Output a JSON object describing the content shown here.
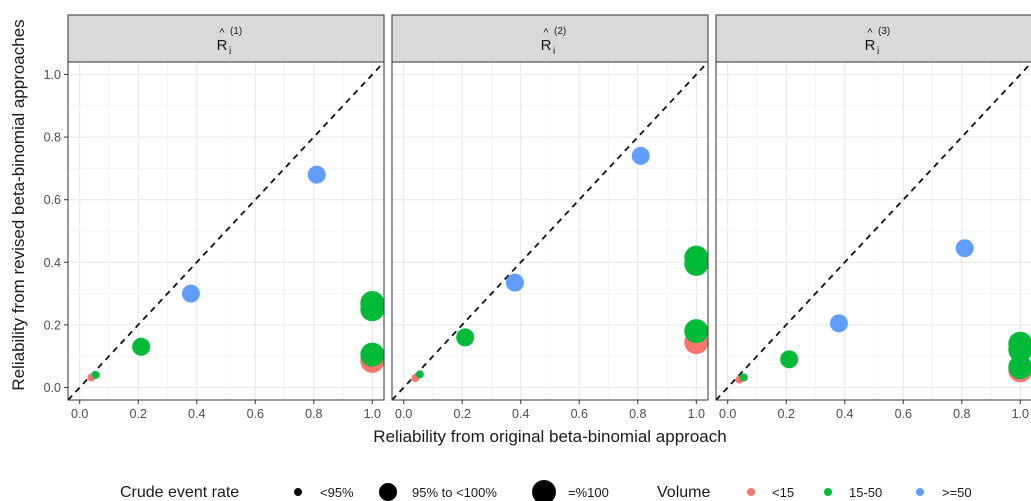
{
  "chart_data": {
    "type": "scatter",
    "xlabel": "Reliability from original beta-binomial approach",
    "ylabel": "Reliability from revised beta-binomial approaches",
    "xlim": [
      -0.04,
      1.04
    ],
    "ylim": [
      -0.04,
      1.04
    ],
    "x_ticks": [
      "0.0",
      "0.2",
      "0.4",
      "0.6",
      "0.8",
      "1.0"
    ],
    "y_ticks": [
      "0.0",
      "0.2",
      "0.4",
      "0.6",
      "0.8",
      "1.0"
    ],
    "grid": true,
    "reference_line": "y = x (dashed)",
    "legend_position": "bottom",
    "size_legend": {
      "title": "Crude event rate",
      "entries": [
        "<95%",
        "95% to <100%",
        "=%100"
      ]
    },
    "color_legend": {
      "title": "Volume",
      "entries": [
        {
          "label": "<15",
          "color": "#F8766D"
        },
        {
          "label": "15-50",
          "color": "#00BA38"
        },
        {
          "label": ">=50",
          "color": "#619CFF"
        }
      ]
    },
    "panels": [
      {
        "strip_label_base": "R",
        "strip_label_sup": "(1)",
        "strip_label_sub": "i",
        "points": [
          {
            "x": 0.04,
            "y": 0.032,
            "volume": "<15",
            "rate": "<95%"
          },
          {
            "x": 0.055,
            "y": 0.04,
            "volume": "15-50",
            "rate": "<95%"
          },
          {
            "x": 0.21,
            "y": 0.13,
            "volume": "15-50",
            "rate": "95% to <100%"
          },
          {
            "x": 0.38,
            "y": 0.3,
            "volume": ">=50",
            "rate": "95% to <100%"
          },
          {
            "x": 0.81,
            "y": 0.68,
            "volume": ">=50",
            "rate": "95% to <100%"
          },
          {
            "x": 1.0,
            "y": 0.085,
            "volume": "<15",
            "rate": "=%100"
          },
          {
            "x": 1.0,
            "y": 0.105,
            "volume": "15-50",
            "rate": "=%100"
          },
          {
            "x": 1.0,
            "y": 0.25,
            "volume": "15-50",
            "rate": "=%100"
          },
          {
            "x": 1.0,
            "y": 0.27,
            "volume": "15-50",
            "rate": "=%100"
          }
        ]
      },
      {
        "strip_label_base": "R",
        "strip_label_sup": "(2)",
        "strip_label_sub": "i",
        "points": [
          {
            "x": 0.04,
            "y": 0.03,
            "volume": "<15",
            "rate": "<95%"
          },
          {
            "x": 0.055,
            "y": 0.042,
            "volume": "15-50",
            "rate": "<95%"
          },
          {
            "x": 0.21,
            "y": 0.16,
            "volume": "15-50",
            "rate": "95% to <100%"
          },
          {
            "x": 0.38,
            "y": 0.335,
            "volume": ">=50",
            "rate": "95% to <100%"
          },
          {
            "x": 0.81,
            "y": 0.74,
            "volume": ">=50",
            "rate": "95% to <100%"
          },
          {
            "x": 1.0,
            "y": 0.145,
            "volume": "<15",
            "rate": "=%100"
          },
          {
            "x": 1.0,
            "y": 0.18,
            "volume": "15-50",
            "rate": "=%100"
          },
          {
            "x": 1.0,
            "y": 0.395,
            "volume": "15-50",
            "rate": "=%100"
          },
          {
            "x": 1.0,
            "y": 0.415,
            "volume": "15-50",
            "rate": "=%100"
          }
        ]
      },
      {
        "strip_label_base": "R",
        "strip_label_sup": "(3)",
        "strip_label_sub": "i",
        "points": [
          {
            "x": 0.04,
            "y": 0.025,
            "volume": "<15",
            "rate": "<95%"
          },
          {
            "x": 0.055,
            "y": 0.032,
            "volume": "15-50",
            "rate": "<95%"
          },
          {
            "x": 0.21,
            "y": 0.09,
            "volume": "15-50",
            "rate": "95% to <100%"
          },
          {
            "x": 0.38,
            "y": 0.205,
            "volume": ">=50",
            "rate": "95% to <100%"
          },
          {
            "x": 0.81,
            "y": 0.445,
            "volume": ">=50",
            "rate": "95% to <100%"
          },
          {
            "x": 1.0,
            "y": 0.055,
            "volume": "<15",
            "rate": "=%100"
          },
          {
            "x": 1.0,
            "y": 0.065,
            "volume": "15-50",
            "rate": "=%100"
          },
          {
            "x": 1.0,
            "y": 0.12,
            "volume": "15-50",
            "rate": "=%100"
          },
          {
            "x": 1.0,
            "y": 0.14,
            "volume": "15-50",
            "rate": "=%100"
          }
        ]
      }
    ]
  }
}
